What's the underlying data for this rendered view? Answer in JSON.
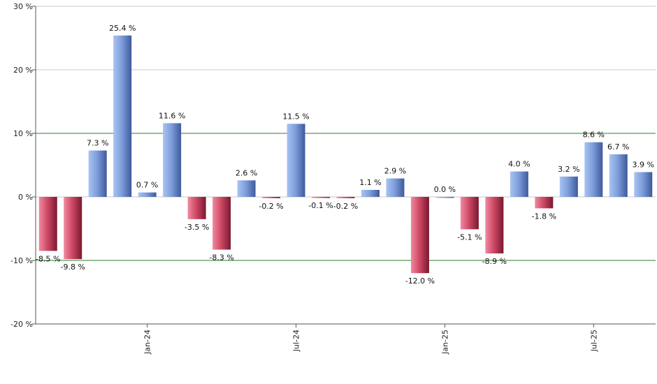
{
  "chart_data": {
    "type": "bar",
    "y_tick_suffix": " %",
    "ylim": [
      -20,
      30
    ],
    "yticks": [
      -20,
      -10,
      0,
      10,
      20,
      30
    ],
    "reference_lines": [
      10,
      -10
    ],
    "x_tick_labels": [
      {
        "label": "Jan-24",
        "index": 4
      },
      {
        "label": "Jul-24",
        "index": 10
      },
      {
        "label": "Jan-25",
        "index": 16
      },
      {
        "label": "Jul-25",
        "index": 22
      }
    ],
    "values": [
      -8.5,
      -9.8,
      7.3,
      25.4,
      0.7,
      11.6,
      -3.5,
      -8.3,
      2.6,
      -0.2,
      11.5,
      -0.1,
      -0.2,
      1.1,
      2.9,
      -12.0,
      0.0,
      -5.1,
      -8.9,
      4.0,
      -1.8,
      3.2,
      8.6,
      6.7,
      3.9
    ],
    "value_labels": [
      "-8.5 %",
      "-9.8 %",
      "7.3 %",
      "25.4 %",
      "0.7 %",
      "11.6 %",
      "-3.5 %",
      "-8.3 %",
      "2.6 %",
      "-0.2 %",
      "11.5 %",
      "-0.1 %",
      "-0.2 %",
      "1.1 %",
      "2.9 %",
      "-12.0 %",
      "0.0 %",
      "-5.1 %",
      "-8.9 %",
      "4.0 %",
      "-1.8 %",
      "3.2 %",
      "8.6 %",
      "6.7 %",
      "3.9 %"
    ],
    "colors": {
      "positive": "#7b9ad6",
      "negative": "#c0344f",
      "reference_line": "#2e7d2e",
      "grid": "#c8c8c8",
      "axis": "#555555"
    }
  }
}
